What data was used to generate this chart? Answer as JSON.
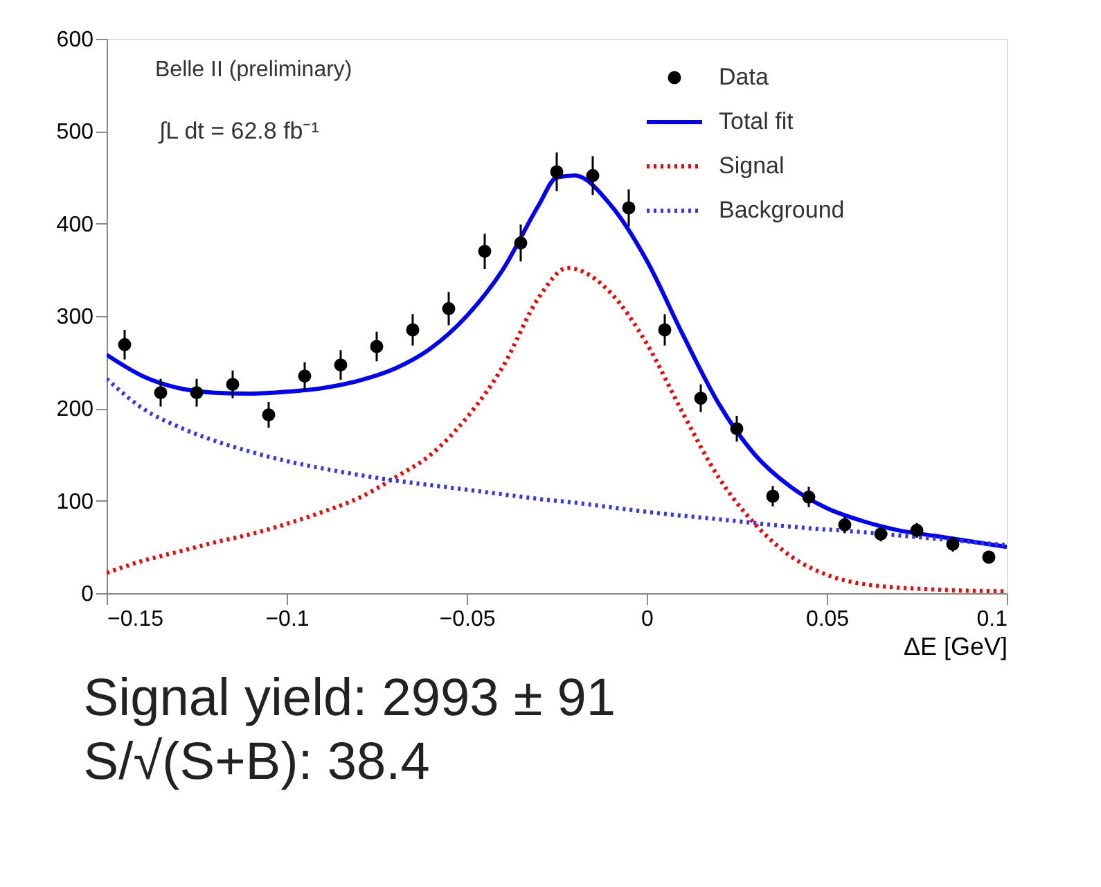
{
  "chart_data": {
    "type": "scatter",
    "xlabel": "ΔE [GeV]",
    "xlim": [
      -0.15,
      0.1
    ],
    "xticks": [
      -0.15,
      -0.1,
      -0.05,
      0,
      0.05,
      0.1
    ],
    "ylim": [
      0,
      600
    ],
    "yticks": [
      0,
      100,
      200,
      300,
      400,
      500,
      600
    ],
    "grid": false,
    "legend": "top right",
    "annotations": [
      "Belle II (preliminary)",
      "∫L dt = 62.8 fb⁻¹",
      "Signal yield: 2993 ± 91",
      "S/√(S+B): 38.4"
    ],
    "series": [
      {
        "name": "Data",
        "type": "scatter",
        "marker": "circle",
        "color": "#000000",
        "x": [
          -0.145,
          -0.135,
          -0.125,
          -0.115,
          -0.105,
          -0.095,
          -0.085,
          -0.075,
          -0.065,
          -0.055,
          -0.045,
          -0.035,
          -0.025,
          -0.015,
          -0.005,
          0.005,
          0.015,
          0.025,
          0.035,
          0.045,
          0.055,
          0.065,
          0.075,
          0.085,
          0.095
        ],
        "values": [
          269,
          217,
          217,
          226,
          193,
          235,
          247,
          267,
          285,
          308,
          370,
          379,
          456,
          452,
          417,
          285,
          211,
          178,
          105,
          104,
          74,
          64,
          68,
          53,
          39
        ],
        "errors": [
          16,
          15,
          15,
          15,
          14,
          15,
          16,
          16,
          17,
          18,
          19,
          20,
          21,
          21,
          20,
          17,
          15,
          14,
          11,
          11,
          9,
          8,
          8,
          8,
          7
        ]
      },
      {
        "name": "Total fit",
        "type": "line",
        "line_style": "solid",
        "color": "#0000ff",
        "x": [
          -0.15,
          -0.14,
          -0.13,
          -0.12,
          -0.11,
          -0.1,
          -0.09,
          -0.08,
          -0.07,
          -0.06,
          -0.05,
          -0.04,
          -0.03,
          -0.025,
          -0.02,
          -0.01,
          0,
          0.01,
          0.02,
          0.03,
          0.04,
          0.05,
          0.06,
          0.07,
          0.08,
          0.09,
          0.1
        ],
        "values": [
          258,
          235,
          222,
          217,
          216,
          218,
          222,
          230,
          243,
          265,
          300,
          350,
          420,
          450,
          452,
          420,
          360,
          280,
          205,
          150,
          115,
          92,
          78,
          68,
          62,
          56,
          50
        ]
      },
      {
        "name": "Signal",
        "type": "line",
        "line_style": "dotted",
        "color": "#ff0000",
        "x": [
          -0.15,
          -0.14,
          -0.13,
          -0.12,
          -0.11,
          -0.1,
          -0.09,
          -0.08,
          -0.07,
          -0.06,
          -0.05,
          -0.04,
          -0.03,
          -0.022,
          -0.01,
          0,
          0.01,
          0.02,
          0.03,
          0.04,
          0.05,
          0.06,
          0.08,
          0.1
        ],
        "values": [
          22,
          35,
          45,
          55,
          64,
          75,
          88,
          103,
          125,
          150,
          190,
          245,
          320,
          352,
          325,
          270,
          195,
          125,
          75,
          40,
          20,
          10,
          4,
          2
        ]
      },
      {
        "name": "Background",
        "type": "line",
        "line_style": "dotted",
        "color": "#3333ff",
        "x": [
          -0.15,
          -0.14,
          -0.13,
          -0.12,
          -0.11,
          -0.1,
          -0.09,
          -0.08,
          -0.07,
          -0.06,
          -0.05,
          -0.04,
          -0.03,
          -0.02,
          -0.01,
          0,
          0.02,
          0.04,
          0.06,
          0.08,
          0.1
        ],
        "values": [
          232,
          200,
          180,
          165,
          153,
          143,
          135,
          128,
          122,
          117,
          112,
          107,
          102,
          98,
          93,
          88,
          80,
          72,
          66,
          59,
          52
        ]
      }
    ]
  }
}
